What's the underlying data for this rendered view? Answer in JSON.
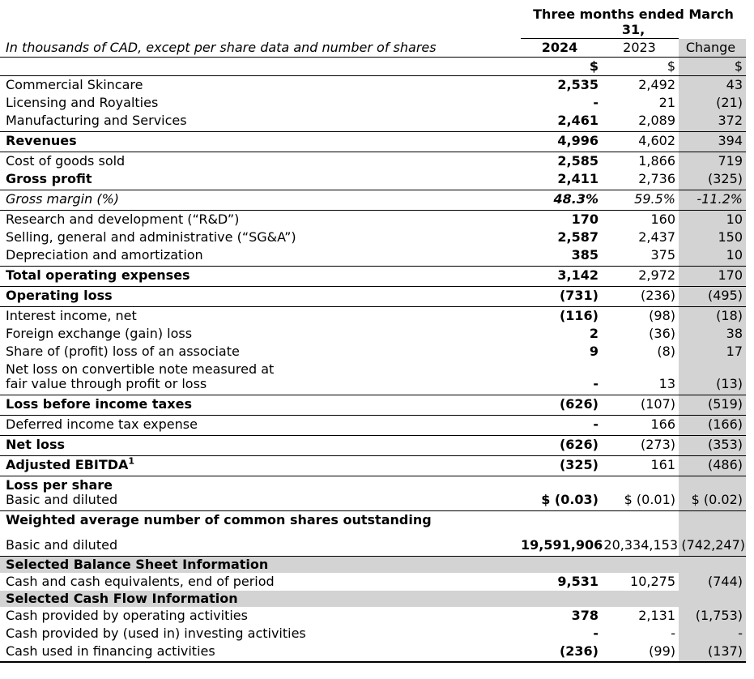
{
  "table": {
    "period_header": "Three months ended March 31,",
    "caption": "In thousands of CAD, except per share data and number of shares",
    "columns": {
      "y2024": "2024",
      "y2023": "2023",
      "change": "Change"
    },
    "currency_row": {
      "y2024": "$",
      "y2023": "$",
      "change": "$"
    },
    "colors": {
      "stripe_gray": "#d3d3d3",
      "rule_black": "#000000",
      "text": "#000000",
      "background": "#ffffff"
    },
    "rows": [
      {
        "kind": "data",
        "label": "Commercial Skincare",
        "v2024": "2,535",
        "v2023": "2,492",
        "change": "43",
        "cls": ""
      },
      {
        "kind": "data",
        "label": "Licensing and Royalties",
        "v2024": "-",
        "v2023": "21",
        "change": "(21)",
        "cls": ""
      },
      {
        "kind": "data",
        "label": "Manufacturing and Services",
        "v2024": "2,461",
        "v2023": "2,089",
        "change": "372",
        "cls": "bb"
      },
      {
        "kind": "data",
        "label": "Revenues",
        "v2024": "4,996",
        "v2023": "4,602",
        "change": "394",
        "cls": "bold bb"
      },
      {
        "kind": "data",
        "label": "Cost of goods sold",
        "v2024": "2,585",
        "v2023": "1,866",
        "change": "719",
        "cls": ""
      },
      {
        "kind": "data",
        "label": "Gross profit",
        "v2024": "2,411",
        "v2023": "2,736",
        "change": "(325)",
        "cls": "bold bb"
      },
      {
        "kind": "data",
        "label": "Gross margin (%)",
        "v2024": "48.3%",
        "v2023": "59.5%",
        "change": "-11.2%",
        "cls": "italic bb"
      },
      {
        "kind": "data",
        "label": "Research and development (“R&D”)",
        "v2024": "170",
        "v2023": "160",
        "change": "10",
        "cls": ""
      },
      {
        "kind": "data",
        "label": "Selling, general and administrative (“SG&A”)",
        "v2024": "2,587",
        "v2023": "2,437",
        "change": "150",
        "cls": ""
      },
      {
        "kind": "data",
        "label": "Depreciation and amortization",
        "v2024": "385",
        "v2023": "375",
        "change": "10",
        "cls": "bb"
      },
      {
        "kind": "data",
        "label": "Total operating expenses",
        "v2024": "3,142",
        "v2023": "2,972",
        "change": "170",
        "cls": "bold bb"
      },
      {
        "kind": "data",
        "label": "Operating loss",
        "v2024": "(731)",
        "v2023": "(236)",
        "change": "(495)",
        "cls": "bold bb"
      },
      {
        "kind": "data",
        "label": "Interest income, net",
        "v2024": "(116)",
        "v2023": "(98)",
        "change": "(18)",
        "cls": ""
      },
      {
        "kind": "data",
        "label": "Foreign exchange (gain) loss",
        "v2024": "2",
        "v2023": "(36)",
        "change": "38",
        "cls": ""
      },
      {
        "kind": "data",
        "label": "Share of (profit) loss of an associate",
        "v2024": "9",
        "v2023": "(8)",
        "change": "17",
        "cls": ""
      },
      {
        "kind": "data",
        "label": "Net loss on convertible note measured at",
        "label2": "fair value through profit or loss",
        "v2024": "-",
        "v2023": "13",
        "change": "(13)",
        "cls": "bb"
      },
      {
        "kind": "data",
        "label": "Loss before income taxes",
        "v2024": "(626)",
        "v2023": "(107)",
        "change": "(519)",
        "cls": "bold bb"
      },
      {
        "kind": "data",
        "label": "Deferred income tax expense",
        "v2024": "-",
        "v2023": "166",
        "change": "(166)",
        "cls": "bb"
      },
      {
        "kind": "data",
        "label": "Net loss",
        "v2024": "(626)",
        "v2023": "(273)",
        "change": "(353)",
        "cls": "bold bb"
      },
      {
        "kind": "data",
        "label": "Adjusted EBITDA",
        "sup": "1",
        "v2024": "(325)",
        "v2023": "161",
        "change": "(486)",
        "cls": "bold bb"
      },
      {
        "kind": "data",
        "label": "Loss per share",
        "label2": "Basic and diluted",
        "label2_regular": true,
        "v2024": "$ (0.03)",
        "v2023": "$ (0.01)",
        "change": "$ (0.02)",
        "cls": "bold bb"
      },
      {
        "kind": "span",
        "label": "Weighted average number of common shares outstanding",
        "cls": "bold"
      },
      {
        "kind": "spacer",
        "cls": "spacer"
      },
      {
        "kind": "data",
        "label": "Basic and diluted",
        "v2024": "19,591,906",
        "v2023": "20,334,153",
        "change": "(742,247)",
        "cls": "bb squeeze"
      },
      {
        "kind": "section",
        "label": "Selected Balance Sheet Information",
        "cls": "section"
      },
      {
        "kind": "data",
        "label": "Cash and cash equivalents, end of period",
        "v2024": "9,531",
        "v2023": "10,275",
        "change": "(744)",
        "cls": ""
      },
      {
        "kind": "section",
        "label": "Selected Cash Flow Information",
        "cls": "section"
      },
      {
        "kind": "data",
        "label": "Cash provided by operating activities",
        "v2024": "378",
        "v2023": "2,131",
        "change": "(1,753)",
        "cls": ""
      },
      {
        "kind": "data",
        "label": "Cash provided by (used in) investing activities",
        "v2024": "-",
        "v2023": "-",
        "change": "-",
        "cls": ""
      },
      {
        "kind": "data",
        "label": "Cash used in financing activities",
        "v2024": "(236)",
        "v2023": "(99)",
        "change": "(137)",
        "cls": "bb-thick"
      }
    ]
  }
}
